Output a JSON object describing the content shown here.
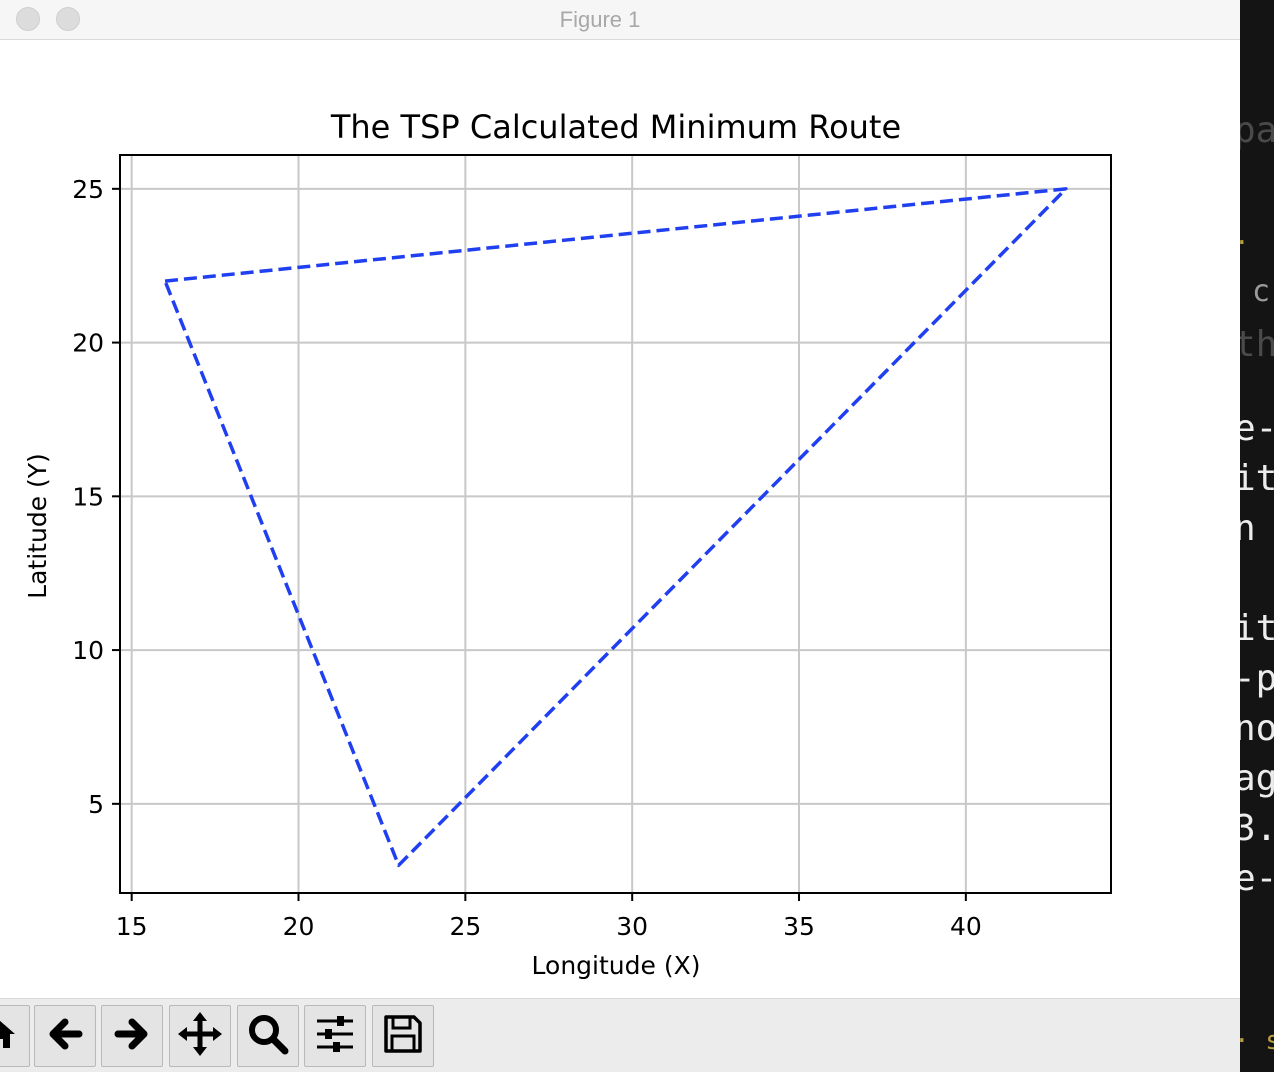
{
  "window": {
    "title": "Figure 1"
  },
  "chart_data": {
    "type": "line",
    "title": "The TSP Calculated Minimum Route",
    "xlabel": "Longitude (X)",
    "ylabel": "Latitude (Y)",
    "xlim": [
      14.65,
      44.35
    ],
    "ylim": [
      2.1,
      26.1
    ],
    "xticks": [
      15,
      20,
      25,
      30,
      35,
      40
    ],
    "yticks": [
      5,
      10,
      15,
      20,
      25
    ],
    "grid": true,
    "line_style": "dashed",
    "color": "#1f3ff0",
    "series": [
      {
        "x": [
          16,
          43,
          23,
          16
        ],
        "y": [
          22,
          25,
          3,
          22
        ]
      }
    ]
  },
  "toolbar": {
    "buttons": [
      {
        "name": "home-button",
        "icon": "home-icon"
      },
      {
        "name": "back-button",
        "icon": "arrow-left-icon"
      },
      {
        "name": "forward-button",
        "icon": "arrow-right-icon"
      },
      {
        "name": "pan-button",
        "icon": "move-icon"
      },
      {
        "name": "zoom-button",
        "icon": "magnifier-icon"
      },
      {
        "name": "configure-subplots-button",
        "icon": "sliders-icon"
      },
      {
        "name": "save-button",
        "icon": "floppy-disk-icon"
      }
    ]
  },
  "terminal": {
    "lines": [
      "pa",
      "·",
      " c",
      "th",
      "e-",
      "it",
      "n",
      "it",
      "-p",
      "no",
      "ag",
      "3.",
      "e-",
      "· s"
    ]
  }
}
